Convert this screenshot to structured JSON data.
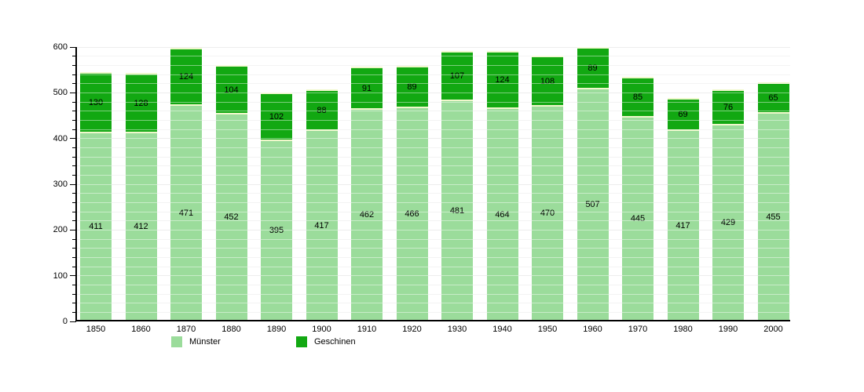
{
  "chart_data": {
    "type": "bar",
    "stacked": true,
    "title": "",
    "xlabel": "",
    "ylabel": "",
    "categories": [
      "1850",
      "1860",
      "1870",
      "1880",
      "1890",
      "1900",
      "1910",
      "1920",
      "1930",
      "1940",
      "1950",
      "1960",
      "1970",
      "1980",
      "1990",
      "2000"
    ],
    "series": [
      {
        "name": "Münster",
        "color": "#9BDC9B",
        "values": [
          411,
          412,
          471,
          452,
          395,
          417,
          462,
          466,
          481,
          464,
          470,
          507,
          445,
          417,
          429,
          455
        ]
      },
      {
        "name": "Geschinen",
        "color": "#12A812",
        "values": [
          130,
          128,
          124,
          104,
          102,
          88,
          91,
          89,
          107,
          124,
          108,
          89,
          85,
          69,
          76,
          65
        ]
      }
    ],
    "ylim": [
      0,
      600
    ],
    "y_ticks": [
      0,
      100,
      200,
      300,
      400,
      500,
      600
    ],
    "y_minor_step": 20,
    "grid": true,
    "bar_value_labels": true,
    "legend_position": "bottom"
  },
  "colors": {
    "background": "#FFFFFF",
    "axis": "#000000",
    "grid_major": "#DEDEDE",
    "grid_minor": "#E9E9E9",
    "bar_edge_highlight": "#F0F8CC",
    "label_text": "#000000"
  }
}
